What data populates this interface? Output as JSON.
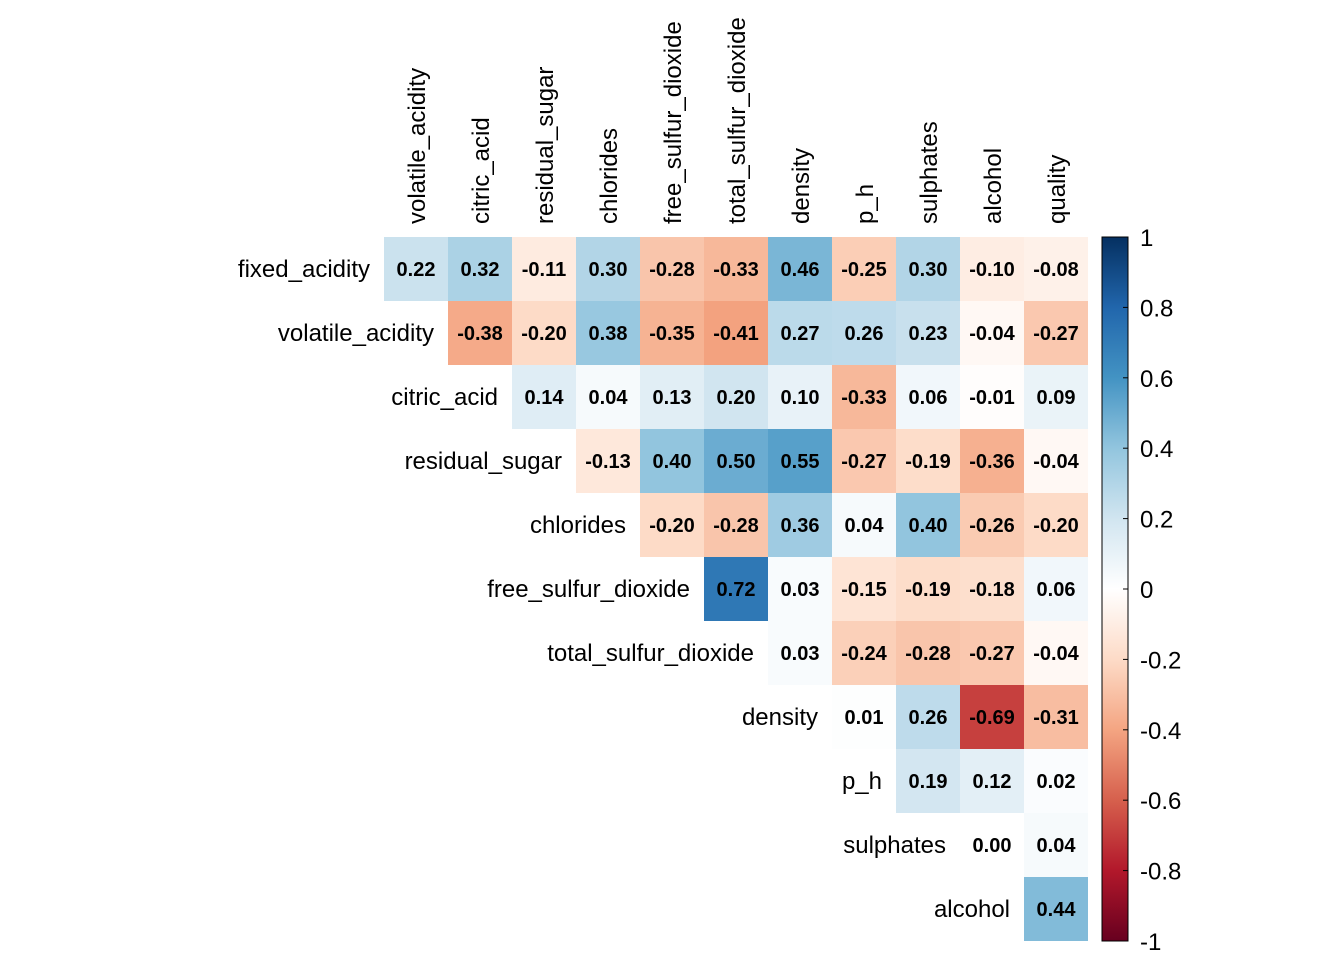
{
  "chart_data": {
    "type": "heatmap",
    "title": "",
    "row_labels": [
      "fixed_acidity",
      "volatile_acidity",
      "citric_acid",
      "residual_sugar",
      "chlorides",
      "free_sulfur_dioxide",
      "total_sulfur_dioxide",
      "density",
      "p_h",
      "sulphates",
      "alcohol"
    ],
    "col_labels": [
      "volatile_acidity",
      "citric_acid",
      "residual_sugar",
      "chlorides",
      "free_sulfur_dioxide",
      "total_sulfur_dioxide",
      "density",
      "p_h",
      "sulphates",
      "alcohol",
      "quality"
    ],
    "values": [
      [
        0.22,
        0.32,
        -0.11,
        0.3,
        -0.28,
        -0.33,
        0.46,
        -0.25,
        0.3,
        -0.1,
        -0.08
      ],
      [
        -0.38,
        -0.2,
        0.38,
        -0.35,
        -0.41,
        0.27,
        0.26,
        0.23,
        -0.04,
        -0.27
      ],
      [
        0.14,
        0.04,
        0.13,
        0.2,
        0.1,
        -0.33,
        0.06,
        -0.01,
        0.09
      ],
      [
        -0.13,
        0.4,
        0.5,
        0.55,
        -0.27,
        -0.19,
        -0.36,
        -0.04
      ],
      [
        -0.2,
        -0.28,
        0.36,
        0.04,
        0.4,
        -0.26,
        -0.2
      ],
      [
        0.72,
        0.03,
        -0.15,
        -0.19,
        -0.18,
        0.06
      ],
      [
        0.03,
        -0.24,
        -0.28,
        -0.27,
        -0.04
      ],
      [
        0.01,
        0.26,
        -0.69,
        -0.31
      ],
      [
        0.19,
        0.12,
        0.02
      ],
      [
        0.0,
        0.04
      ],
      [
        0.44
      ]
    ],
    "value_labels": [
      [
        "0.22",
        "0.32",
        "-0.11",
        "0.30",
        "-0.28",
        "-0.33",
        "0.46",
        "-0.25",
        "0.30",
        "-0.10",
        "-0.08"
      ],
      [
        "-0.38",
        "-0.20",
        "0.38",
        "-0.35",
        "-0.41",
        "0.27",
        "0.26",
        "0.23",
        "-0.04",
        "-0.27"
      ],
      [
        "0.14",
        "0.04",
        "0.13",
        "0.20",
        "0.10",
        "-0.33",
        "0.06",
        "-0.01",
        "0.09"
      ],
      [
        "-0.13",
        "0.40",
        "0.50",
        "0.55",
        "-0.27",
        "-0.19",
        "-0.36",
        "-0.04"
      ],
      [
        "-0.20",
        "-0.28",
        "0.36",
        "0.04",
        "0.40",
        "-0.26",
        "-0.20"
      ],
      [
        "0.72",
        "0.03",
        "-0.15",
        "-0.19",
        "-0.18",
        "0.06"
      ],
      [
        "0.03",
        "-0.24",
        "-0.28",
        "-0.27",
        "-0.04"
      ],
      [
        "0.01",
        "0.26",
        "-0.69",
        "-0.31"
      ],
      [
        "0.19",
        "0.12",
        "0.02"
      ],
      [
        "0.00",
        "0.04"
      ],
      [
        "0.44"
      ]
    ],
    "layout": "upper-triangle",
    "colorbar": {
      "range": [
        -1,
        1
      ],
      "tick_values": [
        1,
        0.8,
        0.6,
        0.4,
        0.2,
        0,
        -0.2,
        -0.4,
        -0.6,
        -0.8,
        -1
      ],
      "tick_labels": [
        "1",
        "0.8",
        "0.6",
        "0.4",
        "0.2",
        "0",
        "-0.2",
        "-0.4",
        "-0.6",
        "-0.8",
        "-1"
      ],
      "colormap": "RdBu",
      "colormap_stops": [
        {
          "v": -1.0,
          "color": "#67001f"
        },
        {
          "v": -0.8,
          "color": "#b2182b"
        },
        {
          "v": -0.6,
          "color": "#d6604d"
        },
        {
          "v": -0.4,
          "color": "#f4a582"
        },
        {
          "v": -0.2,
          "color": "#fddbc7"
        },
        {
          "v": 0.0,
          "color": "#ffffff"
        },
        {
          "v": 0.2,
          "color": "#d1e5f0"
        },
        {
          "v": 0.4,
          "color": "#92c5de"
        },
        {
          "v": 0.6,
          "color": "#4393c3"
        },
        {
          "v": 0.8,
          "color": "#2166ac"
        },
        {
          "v": 1.0,
          "color": "#053061"
        }
      ]
    },
    "grid": false,
    "legend_position": "right"
  }
}
